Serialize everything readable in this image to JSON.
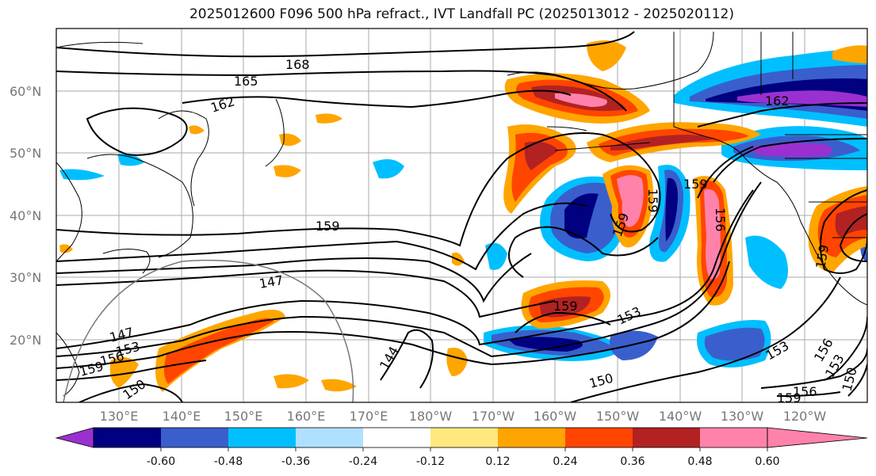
{
  "title": "2025012600 F096 500 hPa refract., IVT Landfall PC (2025013012 - 2025020112)",
  "map": {
    "lat_labels": [
      "60°N",
      "50°N",
      "40°N",
      "30°N",
      "20°N"
    ],
    "lon_labels": [
      "130°E",
      "140°E",
      "150°E",
      "160°E",
      "170°E",
      "180°W",
      "170°W",
      "160°W",
      "150°W",
      "140°W",
      "130°W",
      "120°W"
    ],
    "contour_labels": [
      "168",
      "165",
      "162",
      "159",
      "147",
      "147",
      "153",
      "156",
      "159",
      "150",
      "144",
      "159",
      "159",
      "159",
      "159",
      "153",
      "150",
      "153",
      "156",
      "153",
      "150",
      "156",
      "159",
      "162",
      "156",
      "159"
    ]
  },
  "colorbar": {
    "colors": [
      "#9b30d0",
      "#000080",
      "#3a5fcd",
      "#00bfff",
      "#b0e0ff",
      "#ffffff",
      "#ffe880",
      "#ffa500",
      "#ff4500",
      "#b22222",
      "#ff82ab"
    ],
    "tick_labels": [
      "-0.60",
      "-0.48",
      "-0.36",
      "-0.24",
      "-0.12",
      "0.12",
      "0.24",
      "0.36",
      "0.48",
      "0.60"
    ]
  }
}
